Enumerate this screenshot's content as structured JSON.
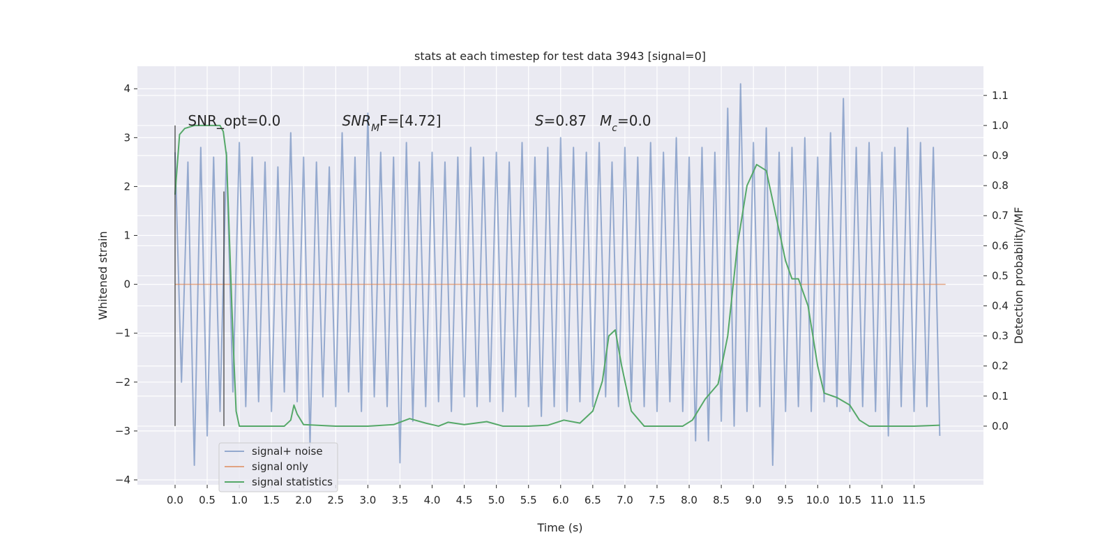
{
  "chart_data": {
    "type": "line",
    "title": "stats at each timestep for test data 3943 [signal=0]",
    "xlabel": "Time (s)",
    "ylabel": "Whitened strain",
    "y2label": "Detection probability/MF",
    "xlim": [
      -0.586,
      12.58
    ],
    "ylim": [
      -4.1,
      4.46
    ],
    "y2lim": [
      -0.195,
      1.197
    ],
    "xticks": [
      {
        "value": 0,
        "label": "0.0"
      },
      {
        "value": 0.5,
        "label": "0.5"
      },
      {
        "value": 1,
        "label": "1.0"
      },
      {
        "value": 1.5,
        "label": "1.5"
      },
      {
        "value": 2,
        "label": "2.0"
      },
      {
        "value": 2.5,
        "label": "2.5"
      },
      {
        "value": 3,
        "label": "3.0"
      },
      {
        "value": 3.5,
        "label": "3.5"
      },
      {
        "value": 4,
        "label": "4.0"
      },
      {
        "value": 4.5,
        "label": "4.5"
      },
      {
        "value": 5,
        "label": "5.0"
      },
      {
        "value": 5.5,
        "label": "5.5"
      },
      {
        "value": 6,
        "label": "6.0"
      },
      {
        "value": 6.5,
        "label": "6.5"
      },
      {
        "value": 7,
        "label": "7.0"
      },
      {
        "value": 7.5,
        "label": "7.5"
      },
      {
        "value": 8,
        "label": "8.0"
      },
      {
        "value": 8.5,
        "label": "8.5"
      },
      {
        "value": 9,
        "label": "9.0"
      },
      {
        "value": 9.5,
        "label": "9.5"
      },
      {
        "value": 10,
        "label": "10.0"
      },
      {
        "value": 10.5,
        "label": "10.5"
      },
      {
        "value": 11,
        "label": "11.0"
      },
      {
        "value": 11.5,
        "label": "11.5"
      }
    ],
    "yticks": [
      {
        "value": -4,
        "label": "−4"
      },
      {
        "value": -3,
        "label": "−3"
      },
      {
        "value": -2,
        "label": "−2"
      },
      {
        "value": -1,
        "label": "−1"
      },
      0,
      1,
      2,
      3,
      4
    ],
    "y2ticks": [
      {
        "value": 0,
        "label": "0.0"
      },
      {
        "value": 0.1,
        "label": "0.1"
      },
      {
        "value": 0.2,
        "label": "0.2"
      },
      {
        "value": 0.3,
        "label": "0.3"
      },
      {
        "value": 0.4,
        "label": "0.4"
      },
      {
        "value": 0.5,
        "label": "0.5"
      },
      {
        "value": 0.6,
        "label": "0.6"
      },
      {
        "value": 0.7,
        "label": "0.7"
      },
      {
        "value": 0.8,
        "label": "0.8"
      },
      {
        "value": 0.9,
        "label": "0.9"
      },
      {
        "value": 1,
        "label": "1.0"
      },
      {
        "value": 1.1,
        "label": "1.1"
      }
    ],
    "grid": true,
    "legend": "lower left",
    "series": [
      {
        "name": "signal+ noise",
        "color": "#4c72b0",
        "x": [
          0,
          0.1,
          0.2,
          0.3,
          0.4,
          0.5,
          0.6,
          0.7,
          0.8,
          0.9,
          1,
          1.1,
          1.2,
          1.3,
          1.4,
          1.5,
          1.6,
          1.7,
          1.8,
          1.9,
          2,
          2.1,
          2.2,
          2.3,
          2.4,
          2.5,
          2.6,
          2.7,
          2.8,
          2.9,
          3,
          3.1,
          3.2,
          3.3,
          3.4,
          3.5,
          3.6,
          3.7,
          3.8,
          3.9,
          4,
          4.1,
          4.2,
          4.3,
          4.4,
          4.5,
          4.6,
          4.7,
          4.8,
          4.9,
          5,
          5.1,
          5.2,
          5.3,
          5.4,
          5.5,
          5.6,
          5.7,
          5.8,
          5.9,
          6,
          6.1,
          6.2,
          6.3,
          6.4,
          6.5,
          6.6,
          6.7,
          6.8,
          6.9,
          7,
          7.1,
          7.2,
          7.3,
          7.4,
          7.5,
          7.6,
          7.7,
          7.8,
          7.9,
          8,
          8.1,
          8.2,
          8.3,
          8.4,
          8.5,
          8.6,
          8.7,
          8.8,
          8.9,
          9,
          9.1,
          9.2,
          9.3,
          9.4,
          9.5,
          9.6,
          9.7,
          9.8,
          9.9,
          10,
          10.1,
          10.2,
          10.3,
          10.4,
          10.5,
          10.6,
          10.7,
          10.8,
          10.9,
          11,
          11.1,
          11.2,
          11.3,
          11.4,
          11.5,
          11.6,
          11.7,
          11.8,
          11.9
        ],
        "values": [
          2.7,
          -2.0,
          2.5,
          -3.7,
          2.8,
          -3.1,
          2.6,
          -2.6,
          2.7,
          -2.2,
          2.9,
          -2.5,
          2.6,
          -2.4,
          2.5,
          -2.6,
          2.4,
          -2.2,
          3.1,
          -2.4,
          2.6,
          -3.3,
          2.5,
          -2.3,
          2.4,
          -2.5,
          3.1,
          -2.2,
          2.6,
          -2.6,
          3.5,
          -2.3,
          2.7,
          -2.5,
          2.6,
          -3.65,
          2.9,
          -2.8,
          2.5,
          -2.5,
          2.7,
          -2.4,
          2.5,
          -2.6,
          2.6,
          -2.3,
          2.8,
          -2.5,
          2.6,
          -2.4,
          2.7,
          -2.6,
          2.5,
          -2.3,
          2.9,
          -2.5,
          2.6,
          -2.7,
          2.8,
          -2.5,
          3.0,
          -2.6,
          2.8,
          -2.4,
          2.7,
          -2.5,
          2.9,
          -2.3,
          2.5,
          -2.5,
          2.8,
          -2.4,
          2.6,
          -2.5,
          2.9,
          -2.6,
          2.7,
          -2.4,
          3.0,
          -2.6,
          2.6,
          -3.2,
          2.8,
          -3.2,
          2.7,
          -2.8,
          3.6,
          -2.9,
          4.1,
          -2.6,
          2.9,
          -2.5,
          3.2,
          -3.7,
          2.7,
          -2.6,
          2.8,
          -2.5,
          3.0,
          -2.6,
          2.6,
          -2.4,
          3.1,
          -2.5,
          3.8,
          -2.6,
          2.8,
          -2.5,
          2.9,
          -2.6,
          2.7,
          -3.1,
          2.8,
          -2.5,
          3.2,
          -2.6,
          2.9,
          -2.5,
          2.8,
          -3.1
        ]
      },
      {
        "name": "signal only",
        "color": "#dd8452",
        "x": [
          0,
          11.99
        ],
        "values": [
          0,
          0
        ]
      },
      {
        "name": "signal statistics",
        "color": "#55a868",
        "axis": "y2",
        "x": [
          0,
          0.07,
          0.15,
          0.3,
          0.7,
          0.75,
          0.8,
          0.85,
          0.9,
          0.95,
          1.0,
          1.7,
          1.8,
          1.85,
          1.9,
          2.0,
          2.5,
          3.0,
          3.4,
          3.65,
          3.9,
          4.1,
          4.25,
          4.5,
          4.85,
          5.1,
          5.5,
          5.8,
          6.05,
          6.3,
          6.5,
          6.65,
          6.75,
          6.85,
          6.95,
          7.1,
          7.3,
          7.9,
          8.05,
          8.25,
          8.45,
          8.6,
          8.75,
          8.9,
          9.05,
          9.2,
          9.35,
          9.5,
          9.6,
          9.7,
          9.85,
          10.0,
          10.1,
          10.3,
          10.5,
          10.65,
          10.8,
          11.5,
          11.9
        ],
        "values": [
          0.77,
          0.97,
          0.99,
          1.0,
          1.0,
          0.98,
          0.9,
          0.6,
          0.3,
          0.05,
          0.0,
          0.0,
          0.02,
          0.07,
          0.04,
          0.005,
          0.0,
          0.0,
          0.005,
          0.025,
          0.01,
          0.0,
          0.013,
          0.005,
          0.015,
          0.0,
          0.0,
          0.003,
          0.02,
          0.01,
          0.05,
          0.15,
          0.3,
          0.32,
          0.2,
          0.05,
          0.0,
          0.0,
          0.02,
          0.09,
          0.14,
          0.3,
          0.6,
          0.8,
          0.87,
          0.85,
          0.7,
          0.55,
          0.49,
          0.49,
          0.4,
          0.2,
          0.11,
          0.095,
          0.07,
          0.02,
          0.0,
          0.0,
          0.003
        ]
      }
    ],
    "markers": [
      {
        "x": 0,
        "ymin": -2.9,
        "ymax": 3.25
      },
      {
        "x": 0.76,
        "ymin": -2.9,
        "ymax": 1.9
      }
    ],
    "annotations": [
      {
        "parts": [
          {
            "text": "SNR_opt=0.0"
          }
        ]
      },
      {
        "parts": [
          {
            "text": "SNR",
            "style": "italic"
          },
          {
            "text": "M",
            "style": "sub"
          },
          {
            "text": "F=[4.72]"
          }
        ]
      },
      {
        "parts": [
          {
            "text": "S",
            "style": "italic"
          },
          {
            "text": "=0.87   "
          },
          {
            "text": "M",
            "style": "italic"
          },
          {
            "text": "c",
            "style": "sub"
          },
          {
            "text": "=0.0"
          }
        ]
      }
    ]
  }
}
